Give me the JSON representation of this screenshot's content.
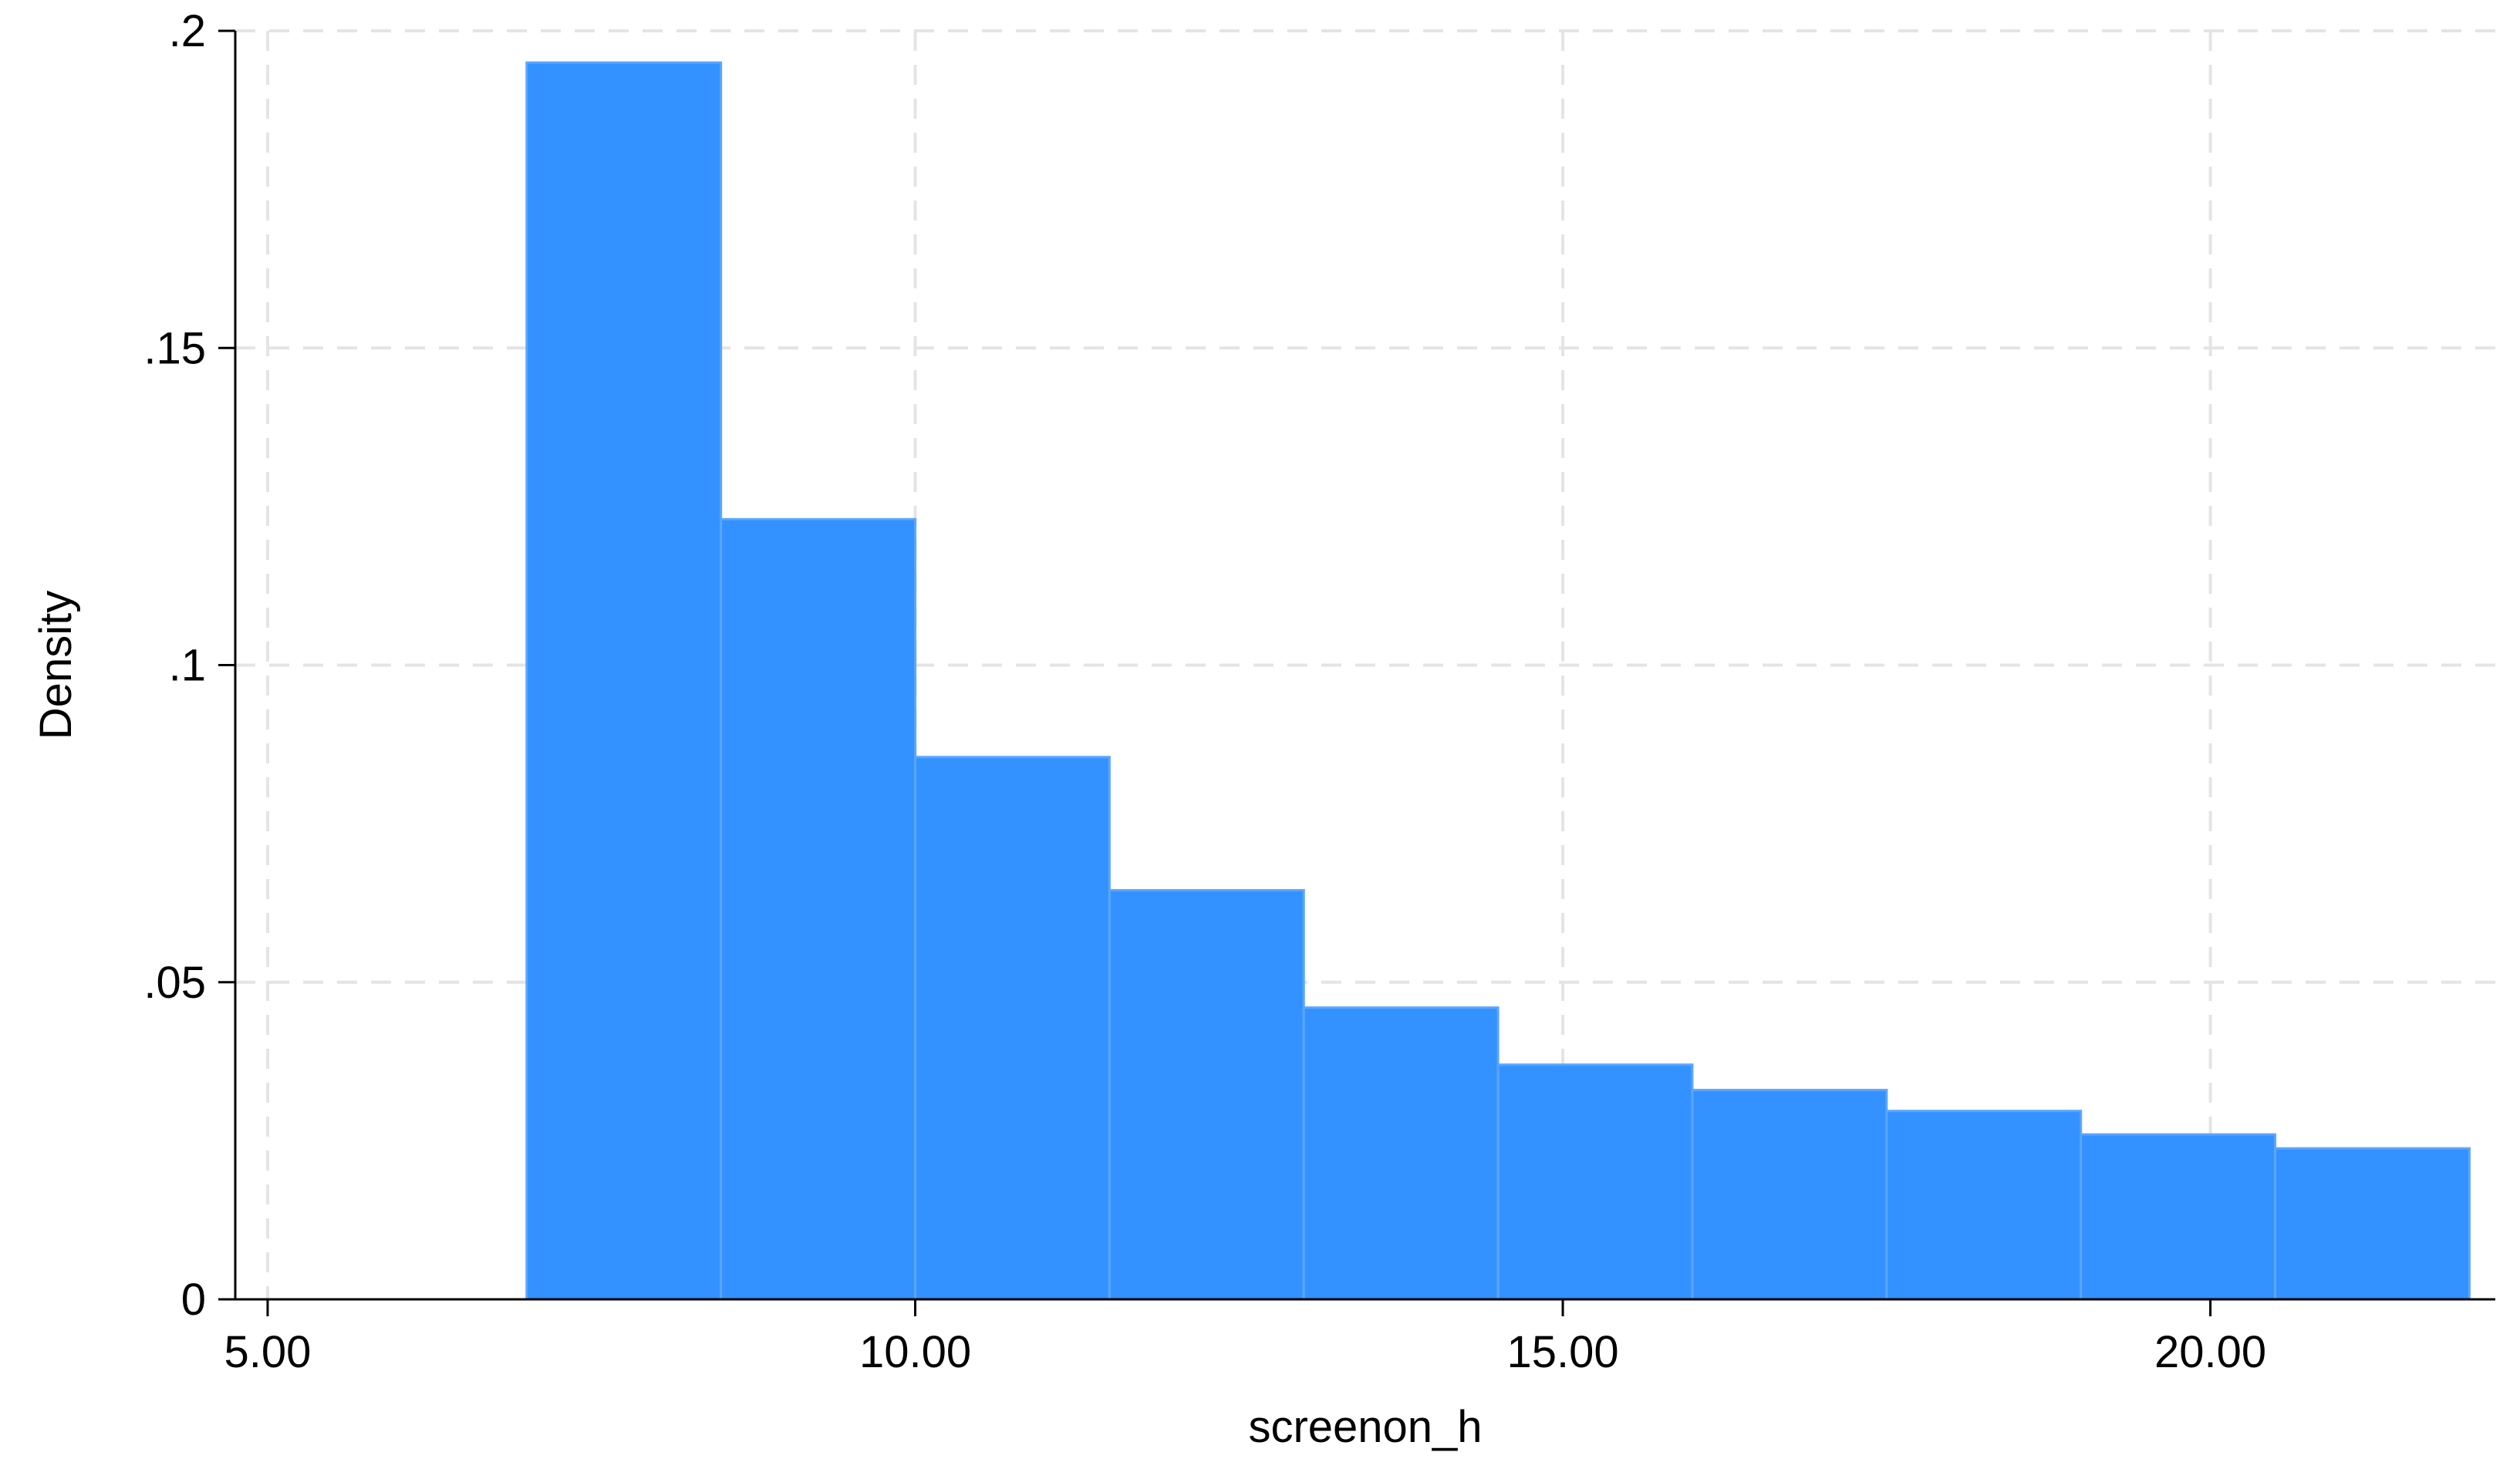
{
  "chart_data": {
    "type": "bar",
    "subtype": "histogram",
    "title": "",
    "xlabel": "screenon_h",
    "ylabel": "Density",
    "xlim": [
      4.75,
      22.2
    ],
    "ylim": [
      0,
      0.2
    ],
    "x_ticks": [
      5,
      10,
      15,
      20
    ],
    "x_tick_labels": [
      "5.00",
      "10.00",
      "15.00",
      "20.00"
    ],
    "y_ticks": [
      0,
      0.05,
      0.1,
      0.15,
      0.2
    ],
    "y_tick_labels": [
      "0",
      ".05",
      ".1",
      ".15",
      ".2"
    ],
    "grid": true,
    "grid_style": "dashed",
    "legend": "none",
    "bar_color": "#3392ff",
    "bar_edge_color": "#5aa6ff",
    "grid_color": "#e4e4e4",
    "bins": [
      {
        "x0": 7.0,
        "x1": 8.5,
        "density": 0.195
      },
      {
        "x0": 8.5,
        "x1": 10.0,
        "density": 0.123
      },
      {
        "x0": 10.0,
        "x1": 11.5,
        "density": 0.0855
      },
      {
        "x0": 11.5,
        "x1": 13.0,
        "density": 0.0645
      },
      {
        "x0": 13.0,
        "x1": 14.5,
        "density": 0.046
      },
      {
        "x0": 14.5,
        "x1": 16.0,
        "density": 0.037
      },
      {
        "x0": 16.0,
        "x1": 17.5,
        "density": 0.033
      },
      {
        "x0": 17.5,
        "x1": 19.0,
        "density": 0.0297
      },
      {
        "x0": 19.0,
        "x1": 20.5,
        "density": 0.026
      },
      {
        "x0": 20.5,
        "x1": 22.0,
        "density": 0.0238
      }
    ]
  }
}
